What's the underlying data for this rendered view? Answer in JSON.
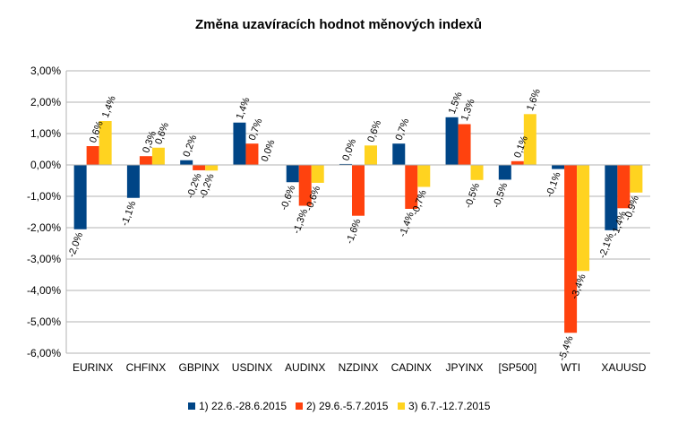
{
  "chart_data": {
    "type": "bar",
    "title": "Změna uzavíracích hodnot měnových indexů",
    "xlabel": "",
    "ylabel": "",
    "ylim": [
      -6,
      3
    ],
    "yticks": [
      3,
      2,
      1,
      0,
      -1,
      -2,
      -3,
      -4,
      -5,
      -6
    ],
    "ytick_labels": [
      "3,00%",
      "2,00%",
      "1,00%",
      "0,00%",
      "-1,00%",
      "-2,00%",
      "-3,00%",
      "-4,00%",
      "-5,00%",
      "-6,00%"
    ],
    "grid": true,
    "legend_position": "bottom",
    "categories": [
      "EURINX",
      "CHFINX",
      "GBPINX",
      "USDINX",
      "AUDINX",
      "NZDINX",
      "CADINX",
      "JPYINX",
      "[SP500]",
      "WTI",
      "XAUUSD"
    ],
    "series": [
      {
        "name": "1) 22.6.-28.6.2015",
        "color": "#004586",
        "values": [
          -2.05,
          -1.05,
          0.15,
          1.35,
          -0.55,
          0.03,
          0.68,
          1.52,
          -0.47,
          -0.13,
          -2.08
        ],
        "labels": [
          "-2,0%",
          "-1,1%",
          "0,2%",
          "1,4%",
          "-0,6%",
          "0,0%",
          "0,7%",
          "1,5%",
          "-0,5%",
          "-0,1%",
          "-2,1%"
        ]
      },
      {
        "name": "2) 29.6.-5.7.2015",
        "color": "#ff420e",
        "values": [
          0.6,
          0.28,
          -0.17,
          0.68,
          -1.3,
          -1.62,
          -1.4,
          1.3,
          0.12,
          -5.35,
          -1.38
        ],
        "labels": [
          "0,6%",
          "0,3%",
          "-0,2%",
          "0,7%",
          "-1,3%",
          "-1,6%",
          "-1,4%",
          "1,3%",
          "0,1%",
          "-5,4%",
          "-1,4%"
        ]
      },
      {
        "name": "3) 6.7.-12.7.2015",
        "color": "#ffd320",
        "values": [
          1.4,
          0.55,
          -0.18,
          0.0,
          -0.57,
          0.62,
          -0.7,
          -0.48,
          1.62,
          -3.38,
          -0.88
        ],
        "labels": [
          "1,4%",
          "0,6%",
          "-0,2%",
          "0,0%",
          "-0,6%",
          "0,6%",
          "-0,7%",
          "-0,5%",
          "1,6%",
          "-3,4%",
          "-0,9%"
        ]
      }
    ]
  }
}
